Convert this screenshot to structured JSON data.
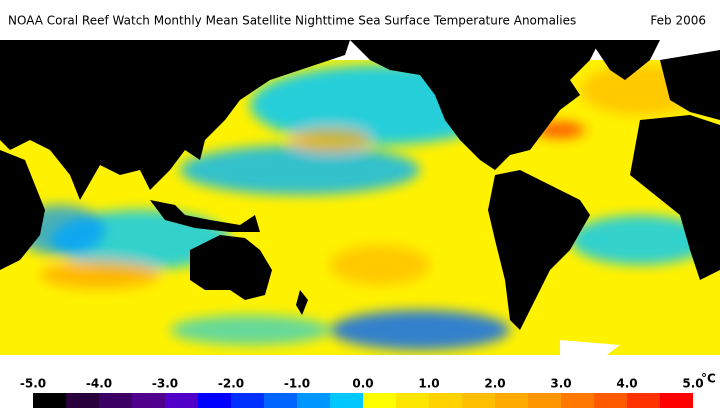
{
  "header": {
    "title": "NOAA Coral Reef Watch Monthly Mean Satellite Nighttime Sea Surface Temperature Anomalies",
    "date": "Feb 2006"
  },
  "colorbar": {
    "range": [
      -5,
      5
    ],
    "unit": "°C",
    "ticks": [
      {
        "value": -5,
        "label": "-5.0"
      },
      {
        "value": -4,
        "label": "-4.0"
      },
      {
        "value": -3,
        "label": "-3.0"
      },
      {
        "value": -2,
        "label": "-2.0"
      },
      {
        "value": -1,
        "label": "-1.0"
      },
      {
        "value": 0,
        "label": "0.0"
      },
      {
        "value": 1,
        "label": "1.0"
      },
      {
        "value": 2,
        "label": "2.0"
      },
      {
        "value": 3,
        "label": "3.0"
      },
      {
        "value": 4,
        "label": "4.0"
      },
      {
        "value": 5,
        "label": "5.0"
      }
    ],
    "colors": [
      "#000000",
      "#28003c",
      "#3c0064",
      "#50008c",
      "#5000c8",
      "#0000ff",
      "#0030ff",
      "#0064ff",
      "#0096ff",
      "#00c8ff",
      "#ffff00",
      "#ffe600",
      "#ffd200",
      "#ffbe00",
      "#ffaa00",
      "#ff9600",
      "#ff7800",
      "#ff5a00",
      "#ff3200",
      "#ff0000"
    ]
  }
}
